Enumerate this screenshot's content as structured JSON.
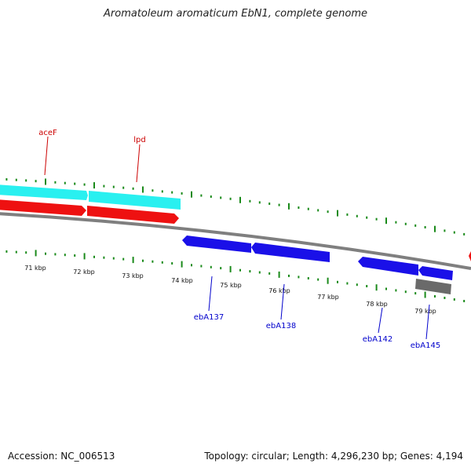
{
  "title": "Aromatoleum aromaticum EbN1, complete genome",
  "footer": {
    "accession": "Accession: NC_006513",
    "summary": "Topology: circular; Length: 4,296,230 bp; Genes: 4,194"
  },
  "colors": {
    "backbone": "#7f7f7f",
    "tick": "#1a8a1a",
    "cyan_track": "#29f0f0",
    "red_track": "#ee1111",
    "blue_track": "#1a10e8",
    "gray_feature": "#6a6a6a",
    "label_red": "#cc0000",
    "label_blue": "#0000cc"
  },
  "kbp_labels": [
    "71 kbp",
    "72 kbp",
    "73 kbp",
    "74 kbp",
    "75 kbp",
    "76 kbp",
    "77 kbp",
    "78 kbp",
    "79 kbp"
  ],
  "top_labels": [
    {
      "text": "aceF",
      "color": "red"
    },
    {
      "text": "lpd",
      "color": "red"
    }
  ],
  "bottom_labels": [
    {
      "text": "ebA137",
      "color": "blue"
    },
    {
      "text": "ebA138",
      "color": "blue"
    },
    {
      "text": "ebA142",
      "color": "blue"
    },
    {
      "text": "ebA145",
      "color": "blue"
    }
  ]
}
